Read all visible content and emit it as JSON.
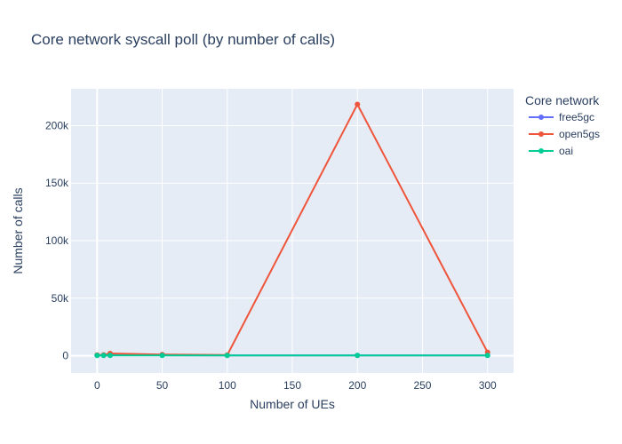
{
  "chart_data": {
    "type": "line",
    "title": "Core network syscall poll (by number of calls)",
    "xlabel": "Number of UEs",
    "ylabel": "Number of calls",
    "xlim": [
      -20,
      320
    ],
    "ylim": [
      -15000,
      232000
    ],
    "xticks": [
      0,
      50,
      100,
      150,
      200,
      250,
      300
    ],
    "xtick_labels": [
      "0",
      "50",
      "100",
      "150",
      "200",
      "250",
      "300"
    ],
    "yticks": [
      0,
      50000,
      100000,
      150000,
      200000
    ],
    "ytick_labels": [
      "0",
      "50k",
      "100k",
      "150k",
      "200k"
    ],
    "grid": true,
    "legend_title": "Core network",
    "legend_position": "right",
    "series": [
      {
        "name": "free5gc",
        "color": "#636efa",
        "x": [
          0,
          5,
          10,
          50,
          100,
          200,
          300
        ],
        "y": [
          300,
          300,
          400,
          400,
          300,
          200,
          300
        ]
      },
      {
        "name": "open5gs",
        "color": "#ef553b",
        "x": [
          0,
          5,
          10,
          50,
          100,
          200,
          300
        ],
        "y": [
          600,
          700,
          2000,
          1000,
          600,
          218500,
          3000
        ]
      },
      {
        "name": "oai",
        "color": "#00cc96",
        "x": [
          0,
          5,
          10,
          50,
          100,
          200,
          300
        ],
        "y": [
          200,
          200,
          200,
          200,
          200,
          200,
          200
        ]
      }
    ]
  }
}
